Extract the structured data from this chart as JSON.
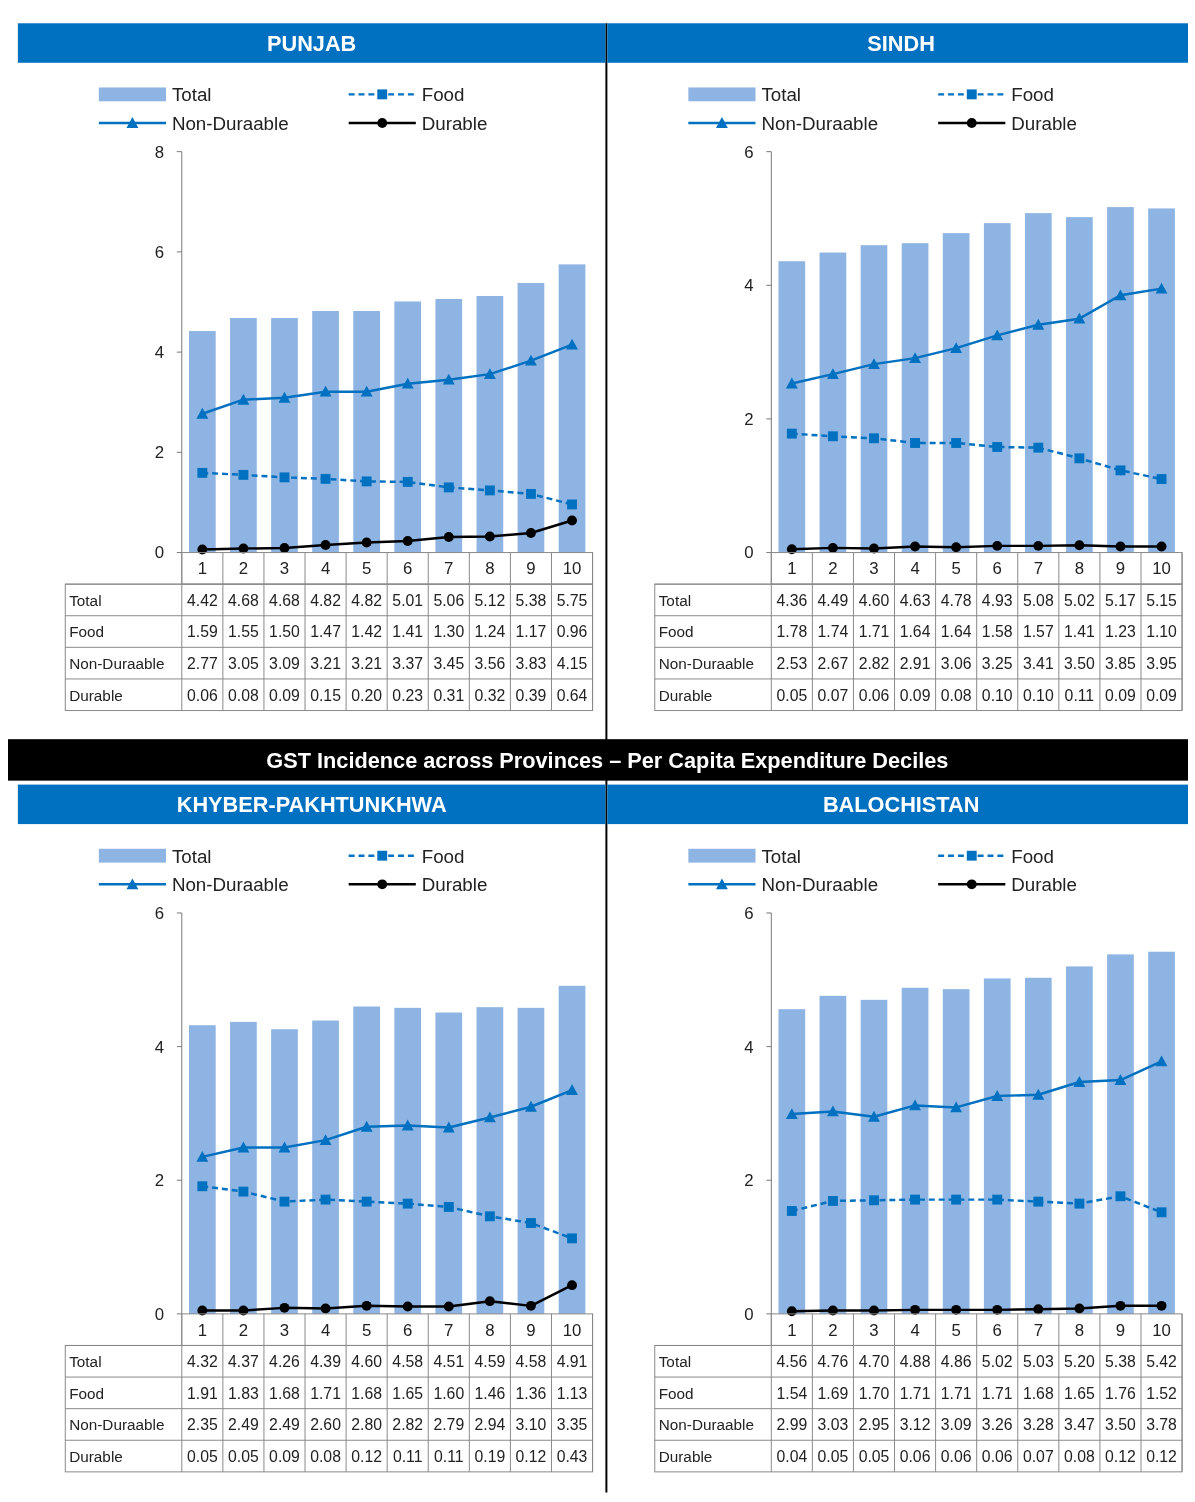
{
  "chart_data": [
    {
      "type": "bar",
      "title": "PUNJAB",
      "categories": [
        "1",
        "2",
        "3",
        "4",
        "5",
        "6",
        "7",
        "8",
        "9",
        "10"
      ],
      "ylim": [
        0,
        8
      ],
      "yticks": [
        0,
        2,
        4,
        6,
        8
      ],
      "legend": "top",
      "series": [
        {
          "name": "Total",
          "type": "bar",
          "color": "#8db4e2",
          "values": [
            4.42,
            4.68,
            4.68,
            4.82,
            4.82,
            5.01,
            5.06,
            5.12,
            5.38,
            5.75
          ],
          "value_labels": [
            "4.42",
            "4.68",
            "4.68",
            "4.82",
            "4.82",
            "5.01",
            "5.06",
            "5.12",
            "5.38",
            "5.75"
          ]
        },
        {
          "name": "Food",
          "type": "line",
          "color": "#0070c0",
          "marker": "square",
          "line_style": "dashed",
          "values": [
            1.59,
            1.55,
            1.5,
            1.47,
            1.42,
            1.41,
            1.3,
            1.24,
            1.17,
            0.96
          ],
          "value_labels": [
            "1.59",
            "1.55",
            "1.50",
            "1.47",
            "1.42",
            "1.41",
            "1.30",
            "1.24",
            "1.17",
            "0.96"
          ]
        },
        {
          "name": "Non-Duraable",
          "type": "line",
          "color": "#0070c0",
          "marker": "triangle",
          "line_style": "solid",
          "values": [
            2.77,
            3.05,
            3.09,
            3.21,
            3.21,
            3.37,
            3.45,
            3.56,
            3.83,
            4.15
          ],
          "value_labels": [
            "2.77",
            "3.05",
            "3.09",
            "3.21",
            "3.21",
            "3.37",
            "3.45",
            "3.56",
            "3.83",
            "4.15"
          ]
        },
        {
          "name": "Durable",
          "type": "line",
          "color": "#000000",
          "marker": "circle",
          "line_style": "solid",
          "values": [
            0.06,
            0.08,
            0.09,
            0.15,
            0.2,
            0.23,
            0.31,
            0.32,
            0.39,
            0.64
          ],
          "value_labels": [
            "0.06",
            "0.08",
            "0.09",
            "0.15",
            "0.20",
            "0.23",
            "0.31",
            "0.32",
            "0.39",
            "0.64"
          ]
        }
      ]
    },
    {
      "type": "bar",
      "title": "SINDH",
      "categories": [
        "1",
        "2",
        "3",
        "4",
        "5",
        "6",
        "7",
        "8",
        "9",
        "10"
      ],
      "ylim": [
        0,
        6
      ],
      "yticks": [
        0,
        2,
        4,
        6
      ],
      "legend": "top",
      "series": [
        {
          "name": "Total",
          "type": "bar",
          "color": "#8db4e2",
          "values": [
            4.36,
            4.49,
            4.6,
            4.63,
            4.78,
            4.93,
            5.08,
            5.02,
            5.17,
            5.15
          ],
          "value_labels": [
            "4.36",
            "4.49",
            "4.60",
            "4.63",
            "4.78",
            "4.93",
            "5.08",
            "5.02",
            "5.17",
            "5.15"
          ]
        },
        {
          "name": "Food",
          "type": "line",
          "color": "#0070c0",
          "marker": "square",
          "line_style": "dashed",
          "values": [
            1.78,
            1.74,
            1.71,
            1.64,
            1.64,
            1.58,
            1.57,
            1.41,
            1.23,
            1.1
          ],
          "value_labels": [
            "1.78",
            "1.74",
            "1.71",
            "1.64",
            "1.64",
            "1.58",
            "1.57",
            "1.41",
            "1.23",
            "1.10"
          ]
        },
        {
          "name": "Non-Duraable",
          "type": "line",
          "color": "#0070c0",
          "marker": "triangle",
          "line_style": "solid",
          "values": [
            2.53,
            2.67,
            2.82,
            2.91,
            3.06,
            3.25,
            3.41,
            3.5,
            3.85,
            3.95
          ],
          "value_labels": [
            "2.53",
            "2.67",
            "2.82",
            "2.91",
            "3.06",
            "3.25",
            "3.41",
            "3.50",
            "3.85",
            "3.95"
          ]
        },
        {
          "name": "Durable",
          "type": "line",
          "color": "#000000",
          "marker": "circle",
          "line_style": "solid",
          "values": [
            0.05,
            0.07,
            0.06,
            0.09,
            0.08,
            0.1,
            0.1,
            0.11,
            0.09,
            0.09
          ],
          "value_labels": [
            "0.05",
            "0.07",
            "0.06",
            "0.09",
            "0.08",
            "0.10",
            "0.10",
            "0.11",
            "0.09",
            "0.09"
          ]
        }
      ]
    },
    {
      "type": "bar",
      "title": "GST Incidence across Provinces – Per Capita Expenditure Deciles",
      "subtitle": "KHYBER-PAKHTUNKHWA",
      "categories": [
        "1",
        "2",
        "3",
        "4",
        "5",
        "6",
        "7",
        "8",
        "9",
        "10"
      ],
      "ylim": [
        0,
        6
      ],
      "yticks": [
        0,
        2,
        4,
        6
      ],
      "legend": "top",
      "series": [
        {
          "name": "Total",
          "type": "bar",
          "color": "#8db4e2",
          "values": [
            4.32,
            4.37,
            4.26,
            4.39,
            4.6,
            4.58,
            4.51,
            4.59,
            4.58,
            4.91
          ],
          "value_labels": [
            "4.32",
            "4.37",
            "4.26",
            "4.39",
            "4.60",
            "4.58",
            "4.51",
            "4.59",
            "4.58",
            "4.91"
          ]
        },
        {
          "name": "Food",
          "type": "line",
          "color": "#0070c0",
          "marker": "square",
          "line_style": "dashed",
          "values": [
            1.91,
            1.83,
            1.68,
            1.71,
            1.68,
            1.65,
            1.6,
            1.46,
            1.36,
            1.13
          ],
          "value_labels": [
            "1.91",
            "1.83",
            "1.68",
            "1.71",
            "1.68",
            "1.65",
            "1.60",
            "1.46",
            "1.36",
            "1.13"
          ]
        },
        {
          "name": "Non-Duraable",
          "type": "line",
          "color": "#0070c0",
          "marker": "triangle",
          "line_style": "solid",
          "values": [
            2.35,
            2.49,
            2.49,
            2.6,
            2.8,
            2.82,
            2.79,
            2.94,
            3.1,
            3.35
          ],
          "value_labels": [
            "2.35",
            "2.49",
            "2.49",
            "2.60",
            "2.80",
            "2.82",
            "2.79",
            "2.94",
            "3.10",
            "3.35"
          ]
        },
        {
          "name": "Durable",
          "type": "line",
          "color": "#000000",
          "marker": "circle",
          "line_style": "solid",
          "values": [
            0.05,
            0.05,
            0.09,
            0.08,
            0.12,
            0.11,
            0.11,
            0.19,
            0.12,
            0.43
          ],
          "value_labels": [
            "0.05",
            "0.05",
            "0.09",
            "0.08",
            "0.12",
            "0.11",
            "0.11",
            "0.19",
            "0.12",
            "0.43"
          ]
        }
      ]
    },
    {
      "type": "bar",
      "title": "BALOCHISTAN",
      "categories": [
        "1",
        "2",
        "3",
        "4",
        "5",
        "6",
        "7",
        "8",
        "9",
        "10"
      ],
      "ylim": [
        0,
        6
      ],
      "yticks": [
        0,
        2,
        4,
        6
      ],
      "legend": "top",
      "series": [
        {
          "name": "Total",
          "type": "bar",
          "color": "#8db4e2",
          "values": [
            4.56,
            4.76,
            4.7,
            4.88,
            4.86,
            5.02,
            5.03,
            5.2,
            5.38,
            5.42
          ],
          "value_labels": [
            "4.56",
            "4.76",
            "4.70",
            "4.88",
            "4.86",
            "5.02",
            "5.03",
            "5.20",
            "5.38",
            "5.42"
          ]
        },
        {
          "name": "Food",
          "type": "line",
          "color": "#0070c0",
          "marker": "square",
          "line_style": "dashed",
          "values": [
            1.54,
            1.69,
            1.7,
            1.71,
            1.71,
            1.71,
            1.68,
            1.65,
            1.76,
            1.52
          ],
          "value_labels": [
            "1.54",
            "1.69",
            "1.70",
            "1.71",
            "1.71",
            "1.71",
            "1.68",
            "1.65",
            "1.76",
            "1.52"
          ]
        },
        {
          "name": "Non-Duraable",
          "type": "line",
          "color": "#0070c0",
          "marker": "triangle",
          "line_style": "solid",
          "values": [
            2.99,
            3.03,
            2.95,
            3.12,
            3.09,
            3.26,
            3.28,
            3.47,
            3.5,
            3.78
          ],
          "value_labels": [
            "2.99",
            "3.03",
            "2.95",
            "3.12",
            "3.09",
            "3.26",
            "3.28",
            "3.47",
            "3.50",
            "3.78"
          ]
        },
        {
          "name": "Durable",
          "type": "line",
          "color": "#000000",
          "marker": "circle",
          "line_style": "solid",
          "values": [
            0.04,
            0.05,
            0.05,
            0.06,
            0.06,
            0.06,
            0.07,
            0.08,
            0.12,
            0.12
          ],
          "value_labels": [
            "0.04",
            "0.05",
            "0.05",
            "0.06",
            "0.06",
            "0.06",
            "0.07",
            "0.08",
            "0.12",
            "0.12"
          ]
        }
      ]
    }
  ]
}
